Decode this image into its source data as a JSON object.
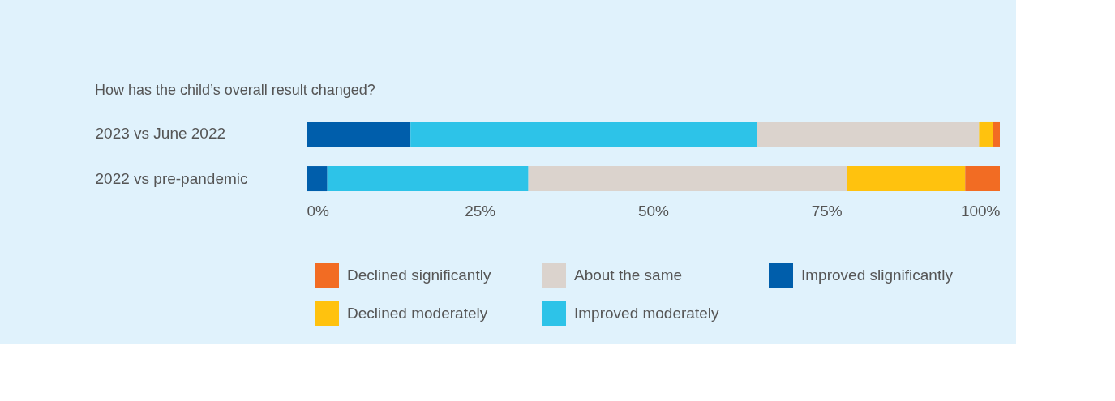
{
  "chart_data": {
    "type": "bar",
    "orientation": "horizontal",
    "stacked": true,
    "title": "How has the child’s overall result changed?",
    "categories": [
      "2023 vs June 2022",
      "2022 vs pre-pandemic"
    ],
    "series": [
      {
        "name": "Improved slignificantly",
        "color": "#005eab",
        "values": [
          15,
          3
        ]
      },
      {
        "name": "Improved moderately",
        "color": "#2dc3e8",
        "values": [
          50,
          29
        ]
      },
      {
        "name": "About the same",
        "color": "#dbd3cd",
        "values": [
          32,
          46
        ]
      },
      {
        "name": "Declined moderately",
        "color": "#ffc20e",
        "values": [
          2,
          17
        ]
      },
      {
        "name": "Declined significantly",
        "color": "#f26c23",
        "values": [
          1,
          5
        ]
      }
    ],
    "xlim": [
      0,
      100
    ],
    "xticks": [
      {
        "value": 0,
        "label": "0%"
      },
      {
        "value": 25,
        "label": "25%"
      },
      {
        "value": 50,
        "label": "50%"
      },
      {
        "value": 75,
        "label": "75%"
      },
      {
        "value": 100,
        "label": "100%"
      }
    ],
    "grid": false,
    "legend": "bottom"
  }
}
